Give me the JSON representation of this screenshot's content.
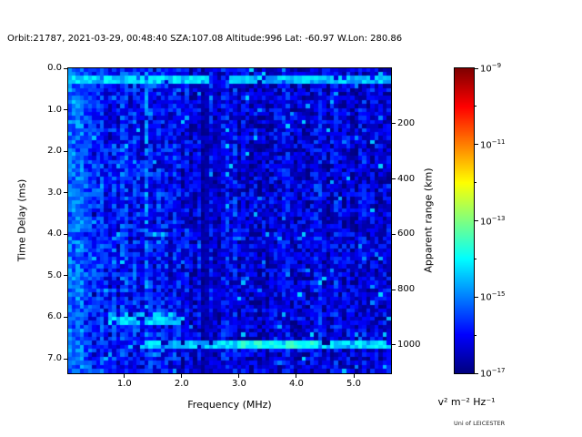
{
  "credit": "Uni of LEICESTER",
  "chart_data": {
    "type": "heatmap",
    "title": "Orbit:21787, 2021-03-29, 00:48:40 SZA:107.08 Altitude:996 Lat: -60.97 W.Lon: 280.86",
    "xlabel": "Frequency (MHz)",
    "ylabel": "Time Delay (ms)",
    "ylabel_right": "Apparent range (km)",
    "colorbar_label": "v² m⁻² Hz⁻¹",
    "annotations": [
      "Uni of LEICESTER"
    ],
    "xlim": [
      0.02,
      5.65
    ],
    "ylim": [
      0,
      7.35
    ],
    "y_axis_reversed": true,
    "grid": false,
    "x_ticks": [
      1.0,
      2.0,
      3.0,
      4.0,
      5.0
    ],
    "x_tick_labels": [
      "1.0",
      "2.0",
      "3.0",
      "4.0",
      "5.0"
    ],
    "y_ticks": [
      0,
      1,
      2,
      3,
      4,
      5,
      6,
      7
    ],
    "y_tick_labels": [
      "0.0",
      "1.0",
      "2.0",
      "3.0",
      "4.0",
      "5.0",
      "6.0",
      "7.0"
    ],
    "right_axis": {
      "tick_values_km": [
        200,
        400,
        600,
        800,
        1000
      ],
      "tick_labels": [
        "200",
        "400",
        "600",
        "800",
        "1000"
      ],
      "km_per_ms": 150
    },
    "colorbar": {
      "scale": "log",
      "min_exponent": -17,
      "max_exponent": -9,
      "tick_exponents": [
        -9,
        -11,
        -13,
        -15,
        -17
      ],
      "tick_labels": [
        {
          "base": "10",
          "exp": "−9"
        },
        {
          "base": "10",
          "exp": "−11"
        },
        {
          "base": "10",
          "exp": "−13"
        },
        {
          "base": "10",
          "exp": "−15"
        },
        {
          "base": "10",
          "exp": "−17"
        }
      ],
      "minor_tick_exponents": [
        -10,
        -12,
        -14,
        -16
      ],
      "colormap": "jet"
    },
    "heatmap": {
      "cols": 80,
      "rows": 76,
      "seed": 20210329,
      "background": {
        "exp_min": -16.85,
        "exp_max": -15.35,
        "col_jitter": 0.3,
        "freq_boost_below_mhz": 2.6,
        "freq_boost_decades": 0.6,
        "right_falloff_decades": 0.4,
        "speckle_prob": 0.02,
        "speckle_exp": [
          -15.1,
          -14.3
        ]
      },
      "features": [
        {
          "type": "vband_bright",
          "name": "low-freq-noise",
          "freq": [
            0.02,
            0.3
          ],
          "delay": [
            0,
            7.35
          ],
          "exp": [
            -15.9,
            -14.5
          ],
          "prob": 1.0
        },
        {
          "type": "vband_bright",
          "name": "low-freq-striations",
          "freq": [
            0.3,
            0.62
          ],
          "delay": [
            0,
            7.35
          ],
          "exp": [
            -16.4,
            -15.0
          ],
          "prob": 0.8
        },
        {
          "type": "vline_dark",
          "name": "dark-stripe-0.38MHz",
          "freq": 0.38,
          "width": 0.05,
          "exp": [
            -16.9,
            -16.4
          ]
        },
        {
          "type": "vline_dark",
          "name": "dark-stripe-0.52MHz",
          "freq": 0.52,
          "width": 0.04,
          "exp": [
            -16.8,
            -16.3
          ]
        },
        {
          "type": "vline_dark",
          "name": "dark-stripe-2.4MHz",
          "freq": 2.4,
          "width": 0.1,
          "exp": [
            -16.9,
            -16.3
          ]
        },
        {
          "type": "vline_dark",
          "name": "dark-stripe-2.65MHz",
          "freq": 2.65,
          "width": 0.14,
          "exp": [
            -16.5,
            -15.9
          ]
        },
        {
          "type": "vline_bright",
          "name": "plasma-line-1.37MHz",
          "freq": 1.37,
          "width": 0.08,
          "delay": [
            0.1,
            6.5
          ],
          "exp": [
            -15.4,
            -14.5
          ],
          "prob": 0.7
        },
        {
          "type": "hband",
          "name": "top-band-left",
          "freq": [
            0.05,
            2.45
          ],
          "delay": [
            0.16,
            0.34
          ],
          "exp": [
            -14.9,
            -13.9
          ],
          "prob": 0.93
        },
        {
          "type": "hband",
          "name": "top-band-right",
          "freq": [
            2.82,
            5.65
          ],
          "delay": [
            0.16,
            0.34
          ],
          "exp": [
            -15.0,
            -14.1
          ],
          "prob": 0.88
        },
        {
          "type": "patch",
          "name": "echo-patch-6ms",
          "freq": [
            0.7,
            2.05
          ],
          "delay": [
            5.9,
            6.15
          ],
          "exp": [
            -15.1,
            -14.0
          ],
          "prob": 0.75
        },
        {
          "type": "hband",
          "name": "bottom-band",
          "freq": [
            1.3,
            5.65
          ],
          "delay": [
            6.6,
            6.8
          ],
          "exp": [
            -15.0,
            -13.9
          ],
          "prob": 0.88
        },
        {
          "type": "hband",
          "name": "bottom-band-bright",
          "freq": [
            3.0,
            4.35
          ],
          "delay": [
            6.6,
            6.8
          ],
          "exp": [
            -14.3,
            -13.4
          ],
          "prob": 0.85
        }
      ]
    }
  }
}
